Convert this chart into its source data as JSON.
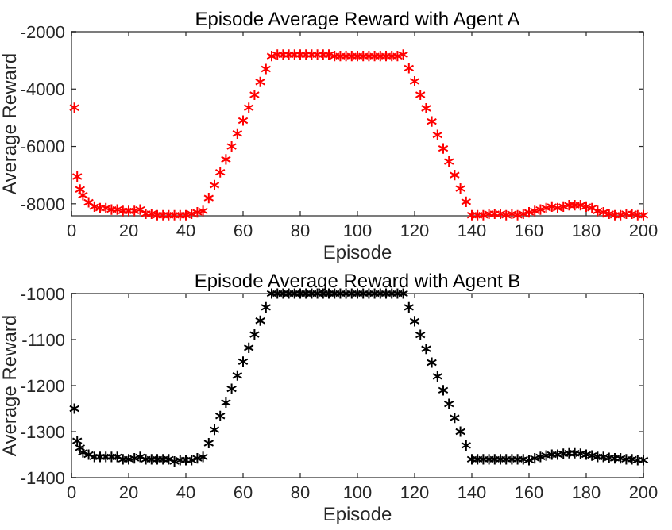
{
  "chart_data": [
    {
      "type": "scatter",
      "title": "Episode Average Reward with Agent A",
      "xlabel": "Episode",
      "ylabel": "Average Reward",
      "marker": "cross",
      "grid": false,
      "xlim": [
        0,
        200
      ],
      "xticks": [
        0,
        20,
        40,
        60,
        80,
        100,
        120,
        140,
        160,
        180,
        200
      ],
      "ylim": [
        -8420,
        -2000
      ],
      "yticks": [
        -8000,
        -6000,
        -4000,
        -2000
      ],
      "x": [
        1,
        2,
        3,
        4,
        6,
        8,
        10,
        12,
        14,
        16,
        18,
        20,
        22,
        24,
        26,
        28,
        30,
        32,
        34,
        36,
        38,
        40,
        42,
        44,
        46,
        48,
        50,
        52,
        54,
        56,
        58,
        60,
        62,
        64,
        66,
        68,
        70,
        72,
        74,
        76,
        78,
        80,
        82,
        84,
        86,
        88,
        90,
        92,
        94,
        96,
        98,
        100,
        102,
        104,
        106,
        108,
        110,
        112,
        114,
        116,
        118,
        120,
        122,
        124,
        126,
        128,
        130,
        132,
        134,
        136,
        138,
        140,
        142,
        144,
        146,
        148,
        150,
        152,
        154,
        156,
        158,
        160,
        162,
        164,
        166,
        168,
        170,
        172,
        174,
        176,
        178,
        180,
        182,
        184,
        186,
        188,
        190,
        192,
        194,
        196,
        198,
        200
      ],
      "series": [
        {
          "color": "#ff0000",
          "values": [
            -4650,
            -7050,
            -7500,
            -7700,
            -7950,
            -8100,
            -8150,
            -8150,
            -8200,
            -8200,
            -8250,
            -8250,
            -8250,
            -8200,
            -8350,
            -8350,
            -8400,
            -8400,
            -8400,
            -8400,
            -8400,
            -8400,
            -8350,
            -8300,
            -8250,
            -7800,
            -7350,
            -6900,
            -6450,
            -6000,
            -5550,
            -5100,
            -4650,
            -4200,
            -3750,
            -3300,
            -2850,
            -2800,
            -2800,
            -2800,
            -2800,
            -2800,
            -2800,
            -2800,
            -2800,
            -2800,
            -2800,
            -2850,
            -2850,
            -2850,
            -2850,
            -2850,
            -2850,
            -2850,
            -2850,
            -2850,
            -2850,
            -2850,
            -2850,
            -2800,
            -3270,
            -3730,
            -4200,
            -4670,
            -5130,
            -5600,
            -6070,
            -6530,
            -7000,
            -7470,
            -7930,
            -8400,
            -8400,
            -8400,
            -8350,
            -8350,
            -8350,
            -8400,
            -8350,
            -8400,
            -8350,
            -8300,
            -8250,
            -8200,
            -8150,
            -8100,
            -8150,
            -8100,
            -8050,
            -8050,
            -8050,
            -8100,
            -8150,
            -8250,
            -8300,
            -8350,
            -8400,
            -8400,
            -8350,
            -8350,
            -8400,
            -8400
          ]
        }
      ]
    },
    {
      "type": "scatter",
      "title": "Episode Average Reward with Agent B",
      "xlabel": "Episode",
      "ylabel": "Average Reward",
      "marker": "cross",
      "grid": false,
      "xlim": [
        0,
        200
      ],
      "xticks": [
        0,
        20,
        40,
        60,
        80,
        100,
        120,
        140,
        160,
        180,
        200
      ],
      "ylim": [
        -1400,
        -1000
      ],
      "yticks": [
        -1400,
        -1300,
        -1200,
        -1100,
        -1000
      ],
      "x": [
        1,
        2,
        3,
        4,
        6,
        8,
        10,
        12,
        14,
        16,
        18,
        20,
        22,
        24,
        26,
        28,
        30,
        32,
        34,
        36,
        38,
        40,
        42,
        44,
        46,
        48,
        50,
        52,
        54,
        56,
        58,
        60,
        62,
        64,
        66,
        68,
        70,
        72,
        74,
        76,
        78,
        80,
        82,
        84,
        86,
        88,
        90,
        92,
        94,
        96,
        98,
        100,
        102,
        104,
        106,
        108,
        110,
        112,
        114,
        116,
        118,
        120,
        122,
        124,
        126,
        128,
        130,
        132,
        134,
        136,
        138,
        140,
        142,
        144,
        146,
        148,
        150,
        152,
        154,
        156,
        158,
        160,
        162,
        164,
        166,
        168,
        170,
        172,
        174,
        176,
        178,
        180,
        182,
        184,
        186,
        188,
        190,
        192,
        194,
        196,
        198,
        200
      ],
      "series": [
        {
          "color": "#000000",
          "values": [
            -1250,
            -1320,
            -1335,
            -1345,
            -1350,
            -1355,
            -1355,
            -1355,
            -1355,
            -1355,
            -1360,
            -1360,
            -1358,
            -1355,
            -1360,
            -1360,
            -1360,
            -1360,
            -1360,
            -1365,
            -1362,
            -1362,
            -1362,
            -1358,
            -1355,
            -1325,
            -1296,
            -1266,
            -1237,
            -1207,
            -1178,
            -1148,
            -1118,
            -1089,
            -1059,
            -1030,
            -1000,
            -1000,
            -1000,
            -1000,
            -1000,
            -1000,
            -1000,
            -1000,
            -1000,
            -1000,
            -1000,
            -1000,
            -1000,
            -1000,
            -1000,
            -1000,
            -1000,
            -1000,
            -1000,
            -1000,
            -1000,
            -1000,
            -1000,
            -1000,
            -1030,
            -1060,
            -1090,
            -1120,
            -1150,
            -1180,
            -1210,
            -1240,
            -1270,
            -1300,
            -1330,
            -1360,
            -1360,
            -1360,
            -1360,
            -1360,
            -1360,
            -1360,
            -1360,
            -1360,
            -1360,
            -1362,
            -1358,
            -1355,
            -1352,
            -1350,
            -1350,
            -1348,
            -1347,
            -1347,
            -1348,
            -1350,
            -1352,
            -1355,
            -1355,
            -1357,
            -1358,
            -1358,
            -1360,
            -1360,
            -1362,
            -1362
          ]
        }
      ]
    }
  ]
}
